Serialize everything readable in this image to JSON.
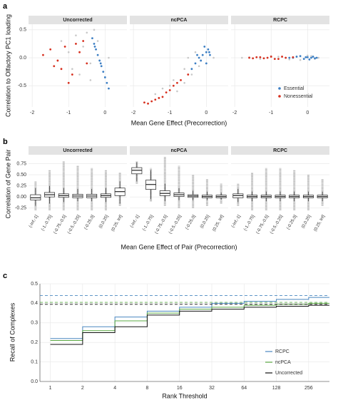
{
  "chart_data": [
    {
      "type": "scatter",
      "panel_label": "a",
      "xlabel": "Mean Gene Effect (Precorrection)",
      "ylabel": "Correlation to Olfactory PC1 loading",
      "xlim": [
        -2.1,
        0.6
      ],
      "ylim": [
        -0.88,
        0.6
      ],
      "xticks": [
        -2,
        -1,
        0
      ],
      "yticks": [
        -0.5,
        {
          "value": 0,
          "label": "0.0"
        },
        0.5
      ],
      "grid": true,
      "legend": [
        {
          "name": "Essential",
          "color": "#3d7fc4"
        },
        {
          "name": "Nonessential",
          "color": "#d7301f"
        }
      ],
      "background_color": "#c8c8c8",
      "facets": [
        {
          "title": "Uncorrected",
          "background": {
            "x": [
              -1.2,
              -0.8,
              -0.6,
              -0.4,
              -0.9,
              -0.5,
              -0.3,
              -0.7,
              -1.0,
              -0.2,
              0.1,
              -0.4
            ],
            "y": [
              0.3,
              0.4,
              0.2,
              -0.1,
              -0.2,
              0.45,
              0.5,
              -0.3,
              0.1,
              0.3,
              0.0,
              -0.4
            ]
          },
          "series": [
            {
              "x": [
                -0.35,
                -0.3,
                -0.25,
                -0.2,
                -0.15,
                -0.1,
                -0.05,
                0,
                0.05,
                0.1,
                -0.28,
                -0.12
              ],
              "y": [
                0.35,
                0.25,
                0.15,
                0.05,
                -0.05,
                -0.15,
                -0.25,
                -0.35,
                -0.45,
                -0.55,
                0.2,
                -0.1
              ]
            },
            {
              "x": [
                -1.7,
                -1.5,
                -1.3,
                -1.1,
                -0.9,
                -0.7,
                -1.2,
                -0.8,
                -0.5,
                -1.0,
                -0.6,
                -1.4
              ],
              "y": [
                0.05,
                0.15,
                -0.05,
                0.2,
                -0.3,
                0.1,
                -0.2,
                0.25,
                -0.1,
                -0.45,
                0.3,
                -0.15
              ]
            }
          ]
        },
        {
          "title": "ncPCA",
          "background": {
            "x": [
              -1.2,
              -0.9,
              -0.6,
              -0.4,
              -0.2,
              -0.5,
              -0.8,
              -1.0,
              -0.3,
              0.2,
              -0.6,
              -1.4
            ],
            "y": [
              -0.55,
              -0.4,
              -0.2,
              -0.3,
              -0.15,
              0.0,
              -0.6,
              -0.5,
              0.1,
              0.0,
              -0.45,
              -0.65
            ]
          },
          "series": [
            {
              "x": [
                -0.3,
                -0.2,
                -0.1,
                0,
                0.05,
                0.1,
                -0.15,
                -0.05,
                0,
                -0.25,
                0.08,
                -0.4
              ],
              "y": [
                -0.1,
                0,
                0.05,
                0.1,
                0.15,
                0.05,
                -0.05,
                0.2,
                -0.1,
                0.05,
                0.1,
                -0.2
              ]
            },
            {
              "x": [
                -1.7,
                -1.5,
                -1.3,
                -1.1,
                -0.9,
                -0.7,
                -0.5,
                -1.6,
                -1.2,
                -0.8,
                -1.4,
                -1.0
              ],
              "y": [
                -0.8,
                -0.78,
                -0.72,
                -0.62,
                -0.5,
                -0.4,
                -0.3,
                -0.82,
                -0.7,
                -0.45,
                -0.75,
                -0.58
              ]
            }
          ]
        },
        {
          "title": "RCPC",
          "background": {
            "x": [
              -1.8,
              -1.0,
              -0.5,
              0,
              0.3,
              -1.3,
              -0.8,
              -0.2,
              0.1,
              -0.6,
              -1.6,
              0.2
            ],
            "y": [
              0,
              0.03,
              -0.03,
              0.04,
              0,
              -0.02,
              0.02,
              -0.04,
              0.03,
              0,
              0.01,
              -0.02
            ]
          },
          "series": [
            {
              "x": [
                -0.5,
                -0.3,
                -0.1,
                0,
                0.1,
                0.2,
                -0.2,
                0.05,
                -0.4,
                0.15,
                0.25,
                -0.05
              ],
              "y": [
                0,
                0.02,
                -0.02,
                0.01,
                0,
                -0.01,
                0.03,
                -0.03,
                0,
                0.02,
                0,
                0.01
              ]
            },
            {
              "x": [
                -1.6,
                -1.4,
                -1.2,
                -1.0,
                -0.8,
                -0.6,
                -0.4,
                -1.5,
                -1.1,
                -0.7,
                -0.9,
                -1.3
              ],
              "y": [
                0,
                0.01,
                -0.01,
                0.02,
                -0.02,
                0,
                0.01,
                -0.01,
                0,
                0.02,
                -0.02,
                0.01
              ]
            }
          ]
        }
      ]
    },
    {
      "type": "box",
      "panel_label": "b",
      "xlabel": "Mean Gene Effect of Pair (Precorrection)",
      "ylabel": "Correlation of Gene Pair",
      "ylim": [
        -0.35,
        0.95
      ],
      "yticks": [
        -0.25,
        {
          "value": 0,
          "label": "0.00"
        },
        0.25,
        {
          "value": 0.5,
          "label": "0.50"
        },
        0.75
      ],
      "grid": true,
      "categories": [
        "(-Inf,-1]",
        "(-1,-0.75]",
        "(-0.75,-0.5]",
        "(-0.5,-0.25]",
        "(-0.25,0]",
        "(0,0.25]",
        "(0.25, Inf]"
      ],
      "facets": [
        {
          "title": "Uncorrected",
          "min": [
            -0.3,
            -0.3,
            -0.3,
            -0.3,
            -0.3,
            -0.3,
            -0.2
          ],
          "lower": [
            -0.2,
            -0.15,
            -0.12,
            -0.1,
            -0.1,
            -0.12,
            -0.15
          ],
          "q1": [
            -0.07,
            0,
            -0.01,
            -0.02,
            -0.02,
            -0.01,
            0.03
          ],
          "median": [
            -0.02,
            0.05,
            0.03,
            0.02,
            0.02,
            0.03,
            0.12
          ],
          "q3": [
            0.05,
            0.1,
            0.07,
            0.06,
            0.06,
            0.07,
            0.2
          ],
          "upper": [
            0.2,
            0.25,
            0.2,
            0.18,
            0.18,
            0.2,
            0.35
          ],
          "max": [
            0.35,
            0.6,
            0.8,
            0.7,
            0.65,
            0.6,
            0.55
          ]
        },
        {
          "title": "ncPCA",
          "min": [
            0.3,
            -0.1,
            -0.2,
            -0.25,
            -0.25,
            -0.2,
            -0.15
          ],
          "lower": [
            0.35,
            -0.05,
            -0.1,
            -0.08,
            -0.08,
            -0.07,
            -0.06
          ],
          "q1": [
            0.52,
            0.17,
            0.03,
            0.01,
            -0.01,
            -0.02,
            -0.02
          ],
          "median": [
            0.6,
            0.28,
            0.08,
            0.05,
            0.02,
            0.01,
            0.01
          ],
          "q3": [
            0.66,
            0.38,
            0.14,
            0.09,
            0.05,
            0.04,
            0.04
          ],
          "upper": [
            0.78,
            0.6,
            0.3,
            0.2,
            0.14,
            0.12,
            0.1
          ],
          "max": [
            0.8,
            0.65,
            0.9,
            0.7,
            0.5,
            0.4,
            0.3
          ]
        },
        {
          "title": "RCPC",
          "min": [
            -0.2,
            -0.3,
            -0.3,
            -0.3,
            -0.3,
            -0.3,
            -0.2
          ],
          "lower": [
            -0.12,
            -0.1,
            -0.1,
            -0.1,
            -0.1,
            -0.1,
            -0.1
          ],
          "q1": [
            -0.02,
            -0.02,
            -0.02,
            -0.02,
            -0.02,
            -0.02,
            -0.02
          ],
          "median": [
            0.03,
            0.01,
            0.01,
            0.01,
            0.01,
            0.01,
            0.01
          ],
          "q3": [
            0.07,
            0.04,
            0.04,
            0.04,
            0.04,
            0.04,
            0.04
          ],
          "upper": [
            0.18,
            0.12,
            0.12,
            0.12,
            0.12,
            0.12,
            0.12
          ],
          "max": [
            0.3,
            0.55,
            0.65,
            0.65,
            0.6,
            0.5,
            0.4
          ]
        }
      ]
    },
    {
      "type": "step",
      "panel_label": "c",
      "xlabel": "Rank Threshold",
      "ylabel": "Recall of Complexes",
      "log_x": true,
      "x": [
        1,
        2,
        4,
        8,
        16,
        32,
        64,
        128,
        256
      ],
      "xlim": [
        0.8,
        400
      ],
      "xticks": [
        1,
        2,
        4,
        8,
        16,
        32,
        64,
        128,
        256
      ],
      "ylim": [
        0,
        0.5
      ],
      "yticks": [
        {
          "value": 0,
          "label": "0.0"
        },
        0.1,
        0.2,
        0.3,
        0.4,
        0.5
      ],
      "grid": true,
      "series": [
        {
          "name": "RCPC",
          "color": "#4a87c0",
          "values": [
            0.22,
            0.28,
            0.33,
            0.36,
            0.38,
            0.4,
            0.41,
            0.42,
            0.43
          ],
          "reference": 0.44
        },
        {
          "name": "ncPCA",
          "color": "#5aa843",
          "values": [
            0.21,
            0.26,
            0.31,
            0.35,
            0.37,
            0.38,
            0.39,
            0.395,
            0.4
          ],
          "reference": 0.405
        },
        {
          "name": "Uncorrected",
          "color": "#111111",
          "values": [
            0.19,
            0.25,
            0.28,
            0.34,
            0.36,
            0.37,
            0.38,
            0.385,
            0.39
          ],
          "reference": 0.395
        }
      ]
    }
  ]
}
